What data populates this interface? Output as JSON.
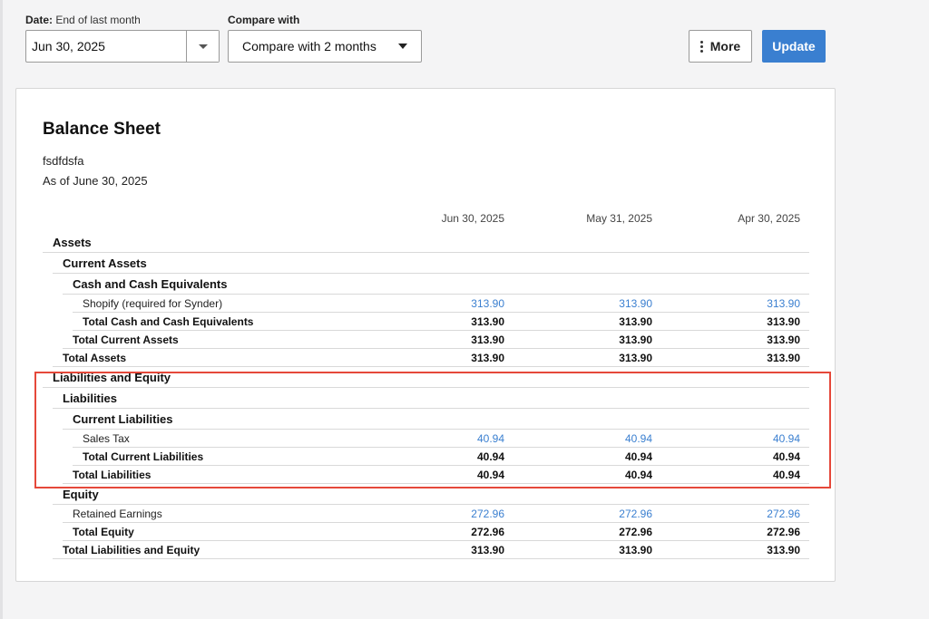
{
  "controls": {
    "date_label_bold": "Date:",
    "date_label_rest": "End of last month",
    "date_value": "Jun 30, 2025",
    "compare_label": "Compare with",
    "compare_value": "Compare with 2 months",
    "more_label": "More",
    "update_label": "Update"
  },
  "report": {
    "title": "Balance Sheet",
    "company": "fsdfdsfa",
    "as_of": "As of June 30, 2025",
    "columns": [
      "Jun 30, 2025",
      "May 31, 2025",
      "Apr 30, 2025"
    ],
    "rows": [
      {
        "type": "h1",
        "indent": 0,
        "name": "Assets",
        "values": [
          "",
          "",
          ""
        ]
      },
      {
        "type": "h2",
        "indent": 1,
        "name": "Current Assets",
        "values": [
          "",
          "",
          ""
        ]
      },
      {
        "type": "h3",
        "indent": 2,
        "name": "Cash and Cash Equivalents",
        "values": [
          "",
          "",
          ""
        ]
      },
      {
        "type": "d",
        "indent": 3,
        "name": "Shopify (required for Synder)",
        "values": [
          "313.90",
          "313.90",
          "313.90"
        ]
      },
      {
        "type": "t",
        "indent": 3,
        "name": "Total Cash and Cash Equivalents",
        "values": [
          "313.90",
          "313.90",
          "313.90"
        ]
      },
      {
        "type": "t",
        "indent": 2,
        "name": "Total Current Assets",
        "values": [
          "313.90",
          "313.90",
          "313.90"
        ]
      },
      {
        "type": "t",
        "indent": 1,
        "name": "Total Assets",
        "values": [
          "313.90",
          "313.90",
          "313.90"
        ]
      },
      {
        "type": "h1",
        "indent": 0,
        "name": "Liabilities and Equity",
        "values": [
          "",
          "",
          ""
        ]
      },
      {
        "type": "h2",
        "indent": 1,
        "name": "Liabilities",
        "values": [
          "",
          "",
          ""
        ]
      },
      {
        "type": "h3",
        "indent": 2,
        "name": "Current Liabilities",
        "values": [
          "",
          "",
          ""
        ]
      },
      {
        "type": "d",
        "indent": 3,
        "name": "Sales Tax",
        "values": [
          "40.94",
          "40.94",
          "40.94"
        ]
      },
      {
        "type": "t",
        "indent": 3,
        "name": "Total Current Liabilities",
        "values": [
          "40.94",
          "40.94",
          "40.94"
        ]
      },
      {
        "type": "t",
        "indent": 2,
        "name": "Total Liabilities",
        "values": [
          "40.94",
          "40.94",
          "40.94"
        ]
      },
      {
        "type": "h2",
        "indent": 1,
        "name": "Equity",
        "values": [
          "",
          "",
          ""
        ]
      },
      {
        "type": "d",
        "indent": 2,
        "name": "Retained Earnings",
        "values": [
          "272.96",
          "272.96",
          "272.96"
        ]
      },
      {
        "type": "t",
        "indent": 2,
        "name": "Total Equity",
        "values": [
          "272.96",
          "272.96",
          "272.96"
        ]
      },
      {
        "type": "t",
        "indent": 1,
        "name": "Total Liabilities and Equity",
        "values": [
          "313.90",
          "313.90",
          "313.90"
        ]
      }
    ]
  },
  "colors": {
    "accent": "#3a7fd0",
    "highlight": "#e5483a"
  },
  "icons": {
    "date_dropdown": "chevron-down-icon",
    "compare_dropdown": "chevron-down-icon",
    "more": "kebab-icon"
  }
}
